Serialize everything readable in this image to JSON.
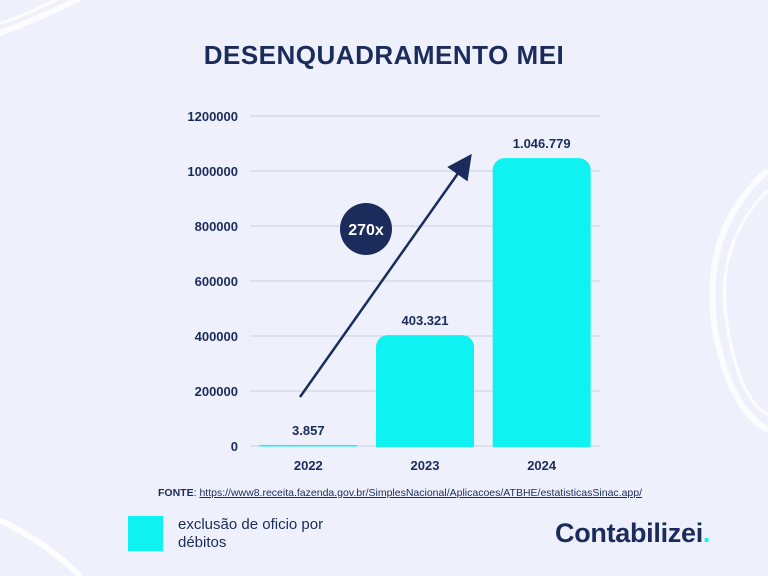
{
  "title": "DESENQUADRAMENTO MEI",
  "chart_data": {
    "type": "bar",
    "categories": [
      "2022",
      "2023",
      "2024"
    ],
    "values": [
      3857,
      403321,
      1046779
    ],
    "value_labels": [
      "3.857",
      "403.321",
      "1.046.779"
    ],
    "ylim": [
      0,
      1200000
    ],
    "yticks": [
      0,
      200000,
      400000,
      600000,
      800000,
      1000000,
      1200000
    ],
    "ytick_labels": [
      "0",
      "200000",
      "400000",
      "600000",
      "800000",
      "1000000",
      "1200000"
    ],
    "grid": true,
    "bar_color": "#0ff2f2",
    "annotation": "270x"
  },
  "source": {
    "label": "FONTE",
    "url": "https://www8.receita.fazenda.gov.br/SimplesNacional/Aplicacoes/ATBHE/estatisticasSinac.app/"
  },
  "legend": {
    "label": "exclusão de oficio por débitos",
    "color": "#0ff2f2"
  },
  "brand": {
    "name": "Contabilizei",
    "dot": "."
  },
  "colors": {
    "navy": "#1b2b5c",
    "cyan": "#0ff2f2",
    "background": "#eef1fb"
  }
}
